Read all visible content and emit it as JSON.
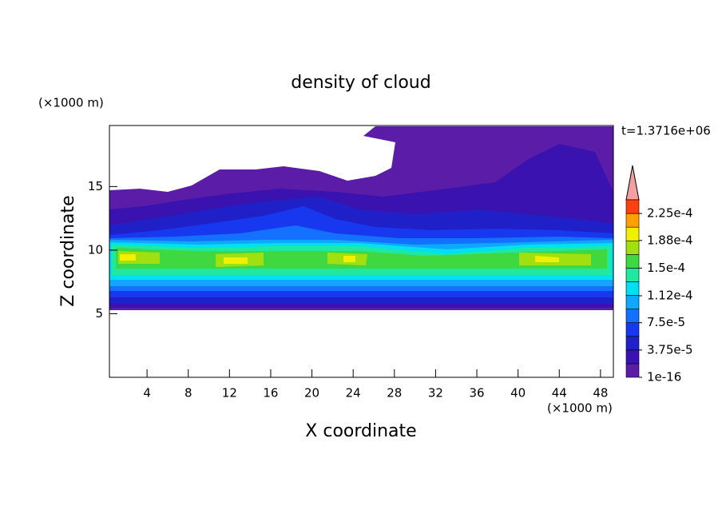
{
  "chart_data": {
    "type": "contour",
    "title": "density of cloud",
    "x_label": "X coordinate",
    "y_label": "Z coordinate",
    "x_unit": "(×1000 m)",
    "y_unit": "(×1000 m)",
    "annotation": "t=1.3716e+06",
    "xlim": [
      0.35,
      49.25
    ],
    "xticks": [
      4,
      8,
      12,
      16,
      20,
      24,
      28,
      32,
      36,
      40,
      44,
      48
    ],
    "ylim": [
      0,
      19.8
    ],
    "yticks": [
      5,
      10,
      15
    ],
    "colorbar": {
      "clim": [
        0,
        0.00024375
      ],
      "colors": [
        "#5b1ca8",
        "#3a12b0",
        "#2020c8",
        "#1838f0",
        "#1470ff",
        "#10a8ff",
        "#00e0f0",
        "#20e8a0",
        "#40d840",
        "#a0e010",
        "#f0f000",
        "#ffa000",
        "#ff4010"
      ],
      "ticks": [
        1e-16,
        {
          "value": 3.75e-05,
          "label": "3.75e-5"
        },
        {
          "value": 7.5e-05,
          "label": "7.5e-5"
        },
        {
          "value": 0.000112,
          "label": "1.12e-4"
        },
        {
          "value": 0.00015,
          "label": "1.5e-4"
        },
        {
          "value": 0.000188,
          "label": "1.88e-4"
        },
        {
          "value": 0.000225,
          "label": "2.25e-4"
        }
      ]
    }
  }
}
